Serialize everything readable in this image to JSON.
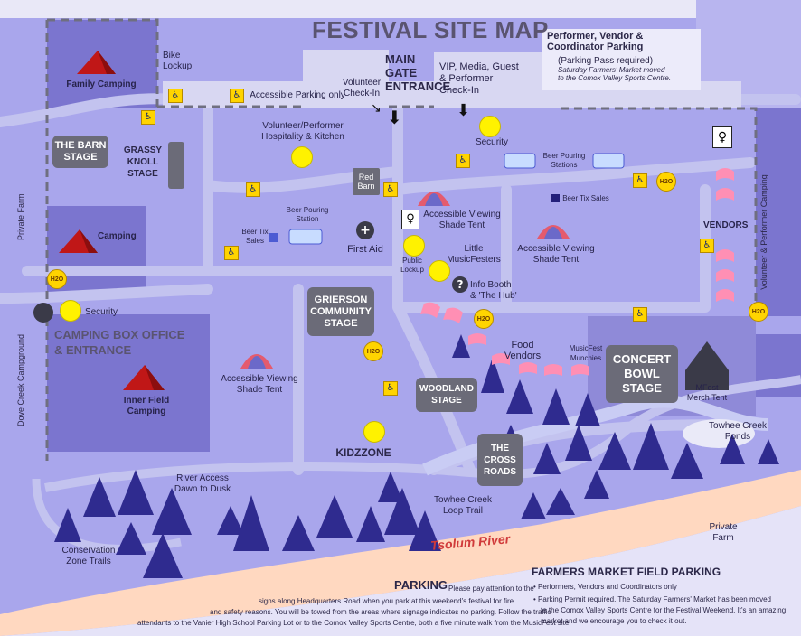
{
  "title": "FESTIVAL SITE MAP",
  "parking_top": {
    "heading": "Performer, Vendor & Coordinator Parking",
    "line1": "(Parking Pass required)",
    "line2": "Saturday Farmers' Market moved",
    "line3": "to the Comox Valley Sports Centre."
  },
  "gates": {
    "main_gate_1": "MAIN",
    "main_gate_2": "GATE",
    "main_gate_3": "ENTRANCE",
    "volunteer_checkin_1": "Volunteer",
    "volunteer_checkin_2": "Check-In",
    "vip_1": "VIP, Media, Guest",
    "vip_2": "& Performer",
    "vip_3": "Check-In",
    "accessible_parking": "Accessible Parking only",
    "bike_lockup_1": "Bike",
    "bike_lockup_2": "Lockup"
  },
  "stages": {
    "barn_1": "THE BARN",
    "barn_2": "STAGE",
    "grassy_1": "GRASSY",
    "grassy_2": "KNOLL",
    "grassy_3": "STAGE",
    "grierson_1": "GRIERSON",
    "grierson_2": "COMMUNITY",
    "grierson_3": "STAGE",
    "woodland_1": "WOODLAND",
    "woodland_2": "STAGE",
    "concert_1": "CONCERT",
    "concert_2": "BOWL",
    "concert_3": "STAGE",
    "crossroads_1": "THE",
    "crossroads_2": "CROSS",
    "crossroads_3": "ROADS",
    "red_barn_1": "Red",
    "red_barn_2": "Barn"
  },
  "camping": {
    "family": "Family Camping",
    "camping": "Camping",
    "inner_1": "Inner Field",
    "inner_2": "Camping",
    "box_office_1": "CAMPING BOX OFFICE",
    "box_office_2": "& ENTRANCE",
    "private_farm_left": "Private Farm",
    "dove_creek": "Dove Creek Campground",
    "volunteer_performer_camping": "Volunteer & Performer Camping"
  },
  "places": {
    "hospitality_1": "Volunteer/Performer",
    "hospitality_2": "Hospitality & Kitchen",
    "security_top": "Security",
    "security_left": "Security",
    "beer_pouring_stations_1": "Beer Pouring",
    "beer_pouring_stations_2": "Stations",
    "beer_pouring_station_1": "Beer Pouring",
    "beer_pouring_station_2": "Station",
    "beer_tix_sales_left_1": "Beer Tix",
    "beer_tix_sales_left_2": "Sales",
    "beer_tix_sales_right": "Beer Tix Sales",
    "first_aid": "First Aid",
    "accessible_shade_top_1": "Accessible Viewing",
    "accessible_shade_top_2": "Shade Tent",
    "accessible_shade_right_1": "Accessible Viewing",
    "accessible_shade_right_2": "Shade Tent",
    "accessible_shade_left_1": "Accessible Viewing",
    "accessible_shade_left_2": "Shade Tent",
    "public_lockup_1": "Public",
    "public_lockup_2": "Lockup",
    "little_1": "Little",
    "little_2": "MusicFesters",
    "info_1": "Info Booth",
    "info_2": "& 'The Hub'",
    "vendors": "VENDORS",
    "food_vendors": "Food Vendors",
    "munchies_1": "MusicFest",
    "munchies_2": "Munchies",
    "merch_1": "MFest",
    "merch_2": "Merch Tent",
    "kidzzone": "KIDZZONE",
    "river_access_1": "River Access",
    "river_access_2": "Dawn to Dusk",
    "towhee_ponds_1": "Towhee Creek",
    "towhee_ponds_2": "Ponds",
    "towhee_loop_1": "Towhee Creek",
    "towhee_loop_2": "Loop Trail",
    "conservation_1": "Conservation",
    "conservation_2": "Zone Trails",
    "private_farm_1": "Private",
    "private_farm_2": "Farm",
    "river": "Tsolum River",
    "h2o": "H2O"
  },
  "parking_bottom": {
    "heading": "PARKING",
    "text1": "Please pay attention to the",
    "text2": "signs along Headquarters Road when you park at this weekend's festival for fire",
    "text3": "and safety reasons. You will be towed from the areas where signage indicates no parking. Follow the traffic",
    "text4": "attendants to the Vanier High School Parking Lot or to the Comox Valley Sports Centre, both a five minute walk from the MusicFest site."
  },
  "farmers": {
    "heading": "FARMERS MARKET FIELD PARKING",
    "bullet1": "Performers, Vendors and Coordinators only",
    "bullet2_a": "Parking Permit required.",
    "bullet2_b": "The Saturday Farmers' Market has been moved",
    "line3": "to the Comox Valley Sports Centre for the Festival Weekend. It's an amazing",
    "line4": "market and we encourage you to check it out."
  },
  "colors": {
    "field": "#a9a6ec",
    "dark_field": "#7b75cf",
    "path": "#c3c3ef",
    "tree": "#2f2b8f",
    "river": "#ffd8c0",
    "yellow": "#fff200"
  }
}
